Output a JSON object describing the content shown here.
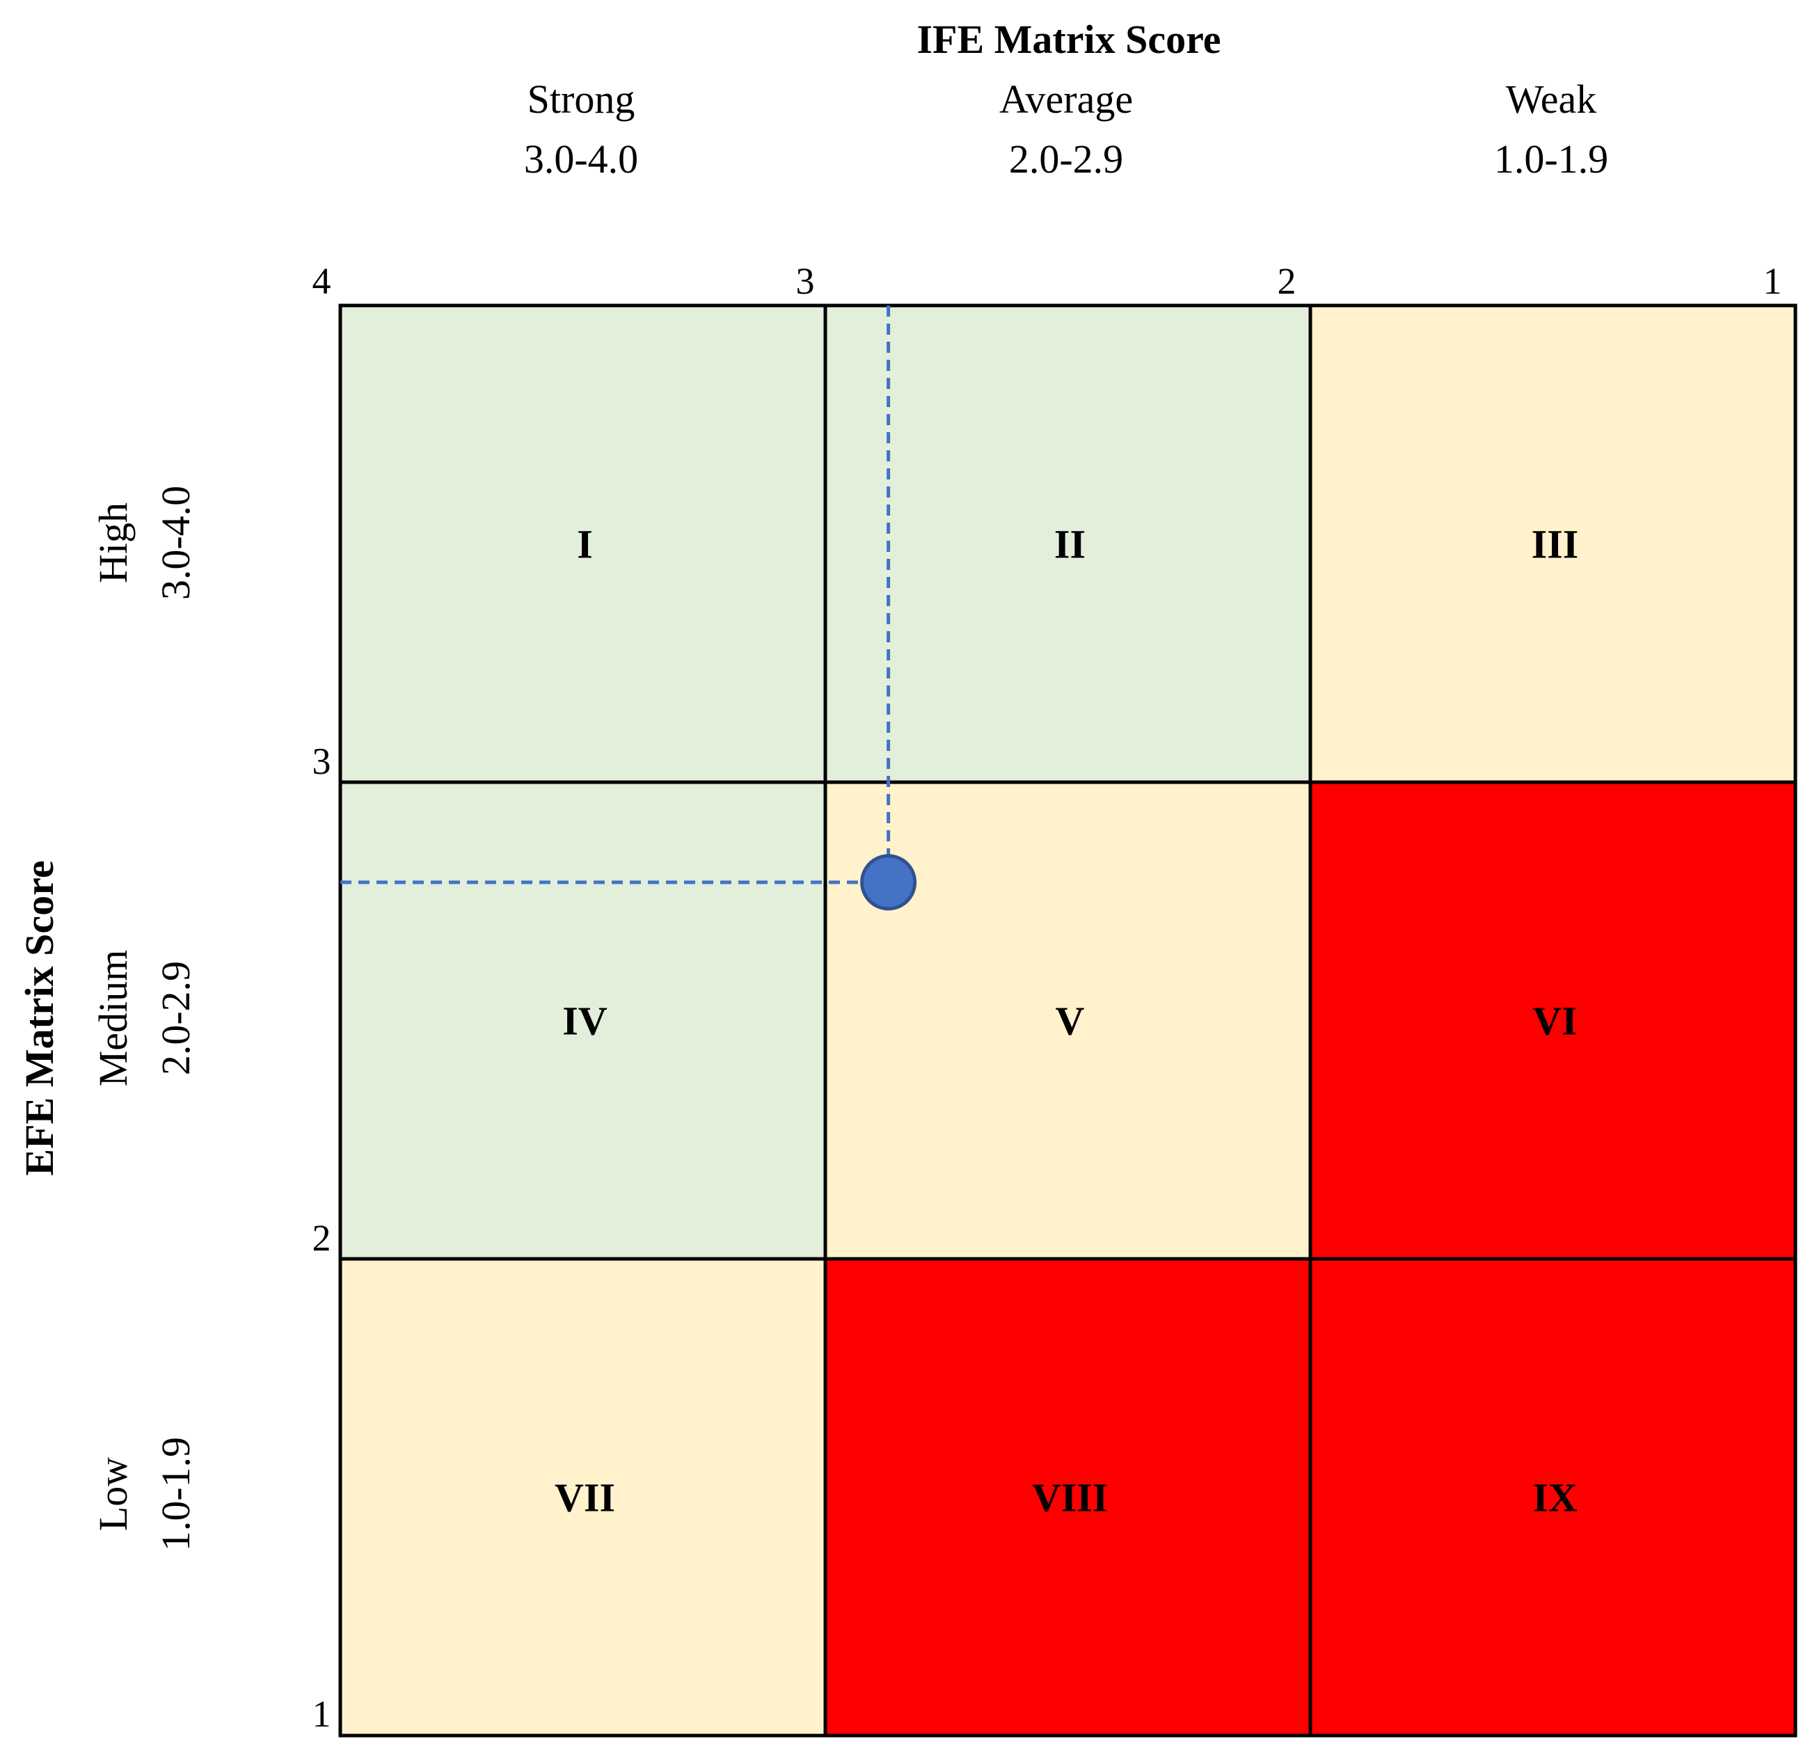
{
  "x_axis": {
    "title": "IFE Matrix Score",
    "categories": [
      {
        "name": "Strong",
        "range": "3.0-4.0"
      },
      {
        "name": "Average",
        "range": "2.0-2.9"
      },
      {
        "name": "Weak",
        "range": "1.0-1.9"
      }
    ],
    "ticks": [
      "4",
      "3",
      "2",
      "1"
    ]
  },
  "y_axis": {
    "title": "EFE Matrix Score",
    "categories": [
      {
        "name": "High",
        "range": "3.0-4.0"
      },
      {
        "name": "Medium",
        "range": "2.0-2.9"
      },
      {
        "name": "Low",
        "range": "1.0-1.9"
      }
    ],
    "ticks": [
      "3",
      "2",
      "1"
    ]
  },
  "cells": [
    {
      "label": "I",
      "color": "#E2EFDA"
    },
    {
      "label": "II",
      "color": "#E2EFDA"
    },
    {
      "label": "III",
      "color": "#FFF2CC"
    },
    {
      "label": "IV",
      "color": "#E2EFDA"
    },
    {
      "label": "V",
      "color": "#FFF2CC"
    },
    {
      "label": "VI",
      "color": "#FF0000"
    },
    {
      "label": "VII",
      "color": "#FFF2CC"
    },
    {
      "label": "VIII",
      "color": "#FF0000"
    },
    {
      "label": "IX",
      "color": "#FF0000"
    }
  ],
  "point": {
    "ife": 2.87,
    "efe": 2.79,
    "color": "#4472C4",
    "outline": "#2F528F"
  },
  "colors": {
    "grid": "#000000",
    "guide": "#4472C4"
  }
}
